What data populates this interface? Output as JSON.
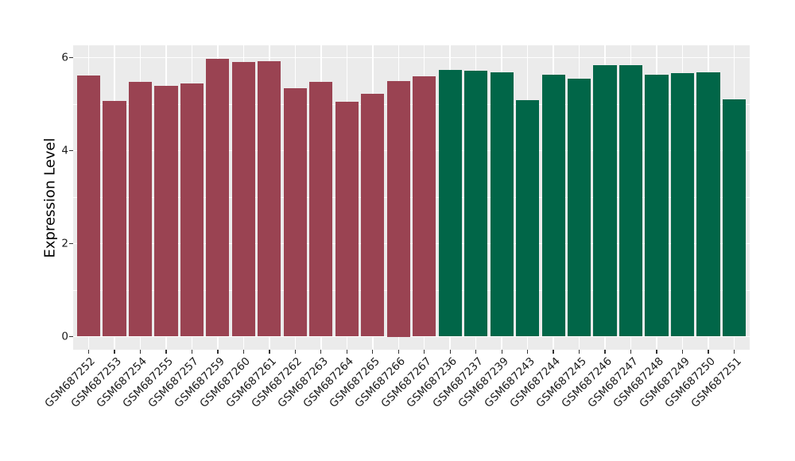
{
  "chart_data": {
    "type": "bar",
    "title": "",
    "xlabel": "",
    "ylabel": "Expression Level",
    "ylim": [
      0,
      6.25
    ],
    "y_ticks_major": [
      0,
      2,
      4,
      6
    ],
    "y_ticks_minor": [
      1,
      3,
      5
    ],
    "grid": "horizontal major+minor white lines, vertical major white line at each category center",
    "legend_position": "none",
    "panel_background": "#EBEBEB",
    "gridline_color": "#FFFFFF",
    "tick_color": "#333333",
    "label_color": "#1a1a1a",
    "categories": [
      "GSM687252",
      "GSM687253",
      "GSM687254",
      "GSM687255",
      "GSM687257",
      "GSM687259",
      "GSM687260",
      "GSM687261",
      "GSM687262",
      "GSM687263",
      "GSM687264",
      "GSM687265",
      "GSM687266",
      "GSM687267",
      "GSM687236",
      "GSM687237",
      "GSM687239",
      "GSM687243",
      "GSM687244",
      "GSM687245",
      "GSM687246",
      "GSM687247",
      "GSM687248",
      "GSM687249",
      "GSM687250",
      "GSM687251"
    ],
    "values": [
      5.62,
      5.07,
      5.48,
      5.39,
      5.44,
      5.97,
      5.91,
      5.93,
      5.35,
      5.48,
      5.05,
      5.22,
      5.5,
      5.6,
      5.73,
      5.71,
      5.68,
      5.08,
      5.64,
      5.54,
      5.83,
      5.84,
      5.64,
      5.66,
      5.69,
      5.11
    ],
    "groups": [
      "maroon",
      "maroon",
      "maroon",
      "maroon",
      "maroon",
      "maroon",
      "maroon",
      "maroon",
      "maroon",
      "maroon",
      "maroon",
      "maroon",
      "maroon",
      "maroon",
      "green",
      "green",
      "green",
      "green",
      "green",
      "green",
      "green",
      "green",
      "green",
      "green",
      "green",
      "green"
    ],
    "group_colors": {
      "maroon": "#9A4352",
      "green": "#016648"
    }
  }
}
